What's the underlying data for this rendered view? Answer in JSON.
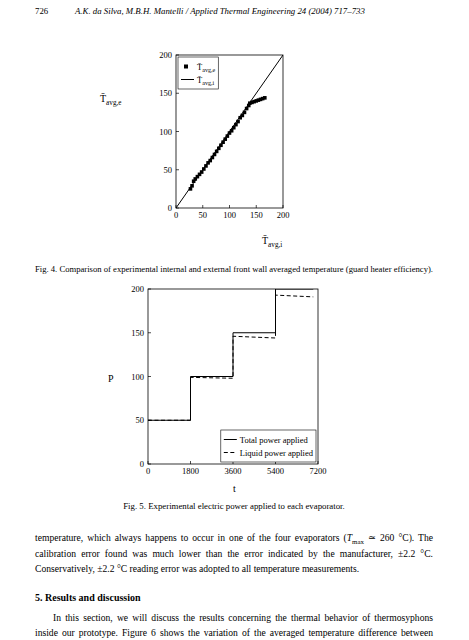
{
  "header": {
    "page_number": "726",
    "running_head": "A.K. da Silva, M.B.H. Mantelli / Applied Thermal Engineering 24 (2004) 717–733"
  },
  "chart_data": [
    {
      "type": "scatter",
      "xlabel": "T̄avg,i",
      "ylabel": "T̄avg,e",
      "xlim": [
        0,
        200
      ],
      "ylim": [
        0,
        200
      ],
      "xticks": [
        0,
        50,
        100,
        150,
        200
      ],
      "yticks": [
        0,
        50,
        100,
        150,
        200
      ],
      "grid": false,
      "legend": "upper left",
      "series": [
        {
          "name": "T̄avg,e",
          "type": "scatter",
          "marker": "square",
          "color": "#000000",
          "x": [
            27,
            30,
            33,
            36,
            40,
            44,
            48,
            52,
            56,
            60,
            64,
            68,
            72,
            76,
            80,
            84,
            88,
            92,
            96,
            100,
            104,
            108,
            112,
            116,
            120,
            124,
            128,
            132,
            136,
            138,
            142,
            146,
            150,
            154,
            158,
            162,
            166
          ],
          "values": [
            25,
            29,
            35,
            38,
            41,
            44,
            47,
            51,
            55,
            59,
            62,
            66,
            70,
            74,
            78,
            82,
            86,
            90,
            94,
            98,
            101,
            105,
            109,
            113,
            118,
            121,
            125,
            130,
            134,
            137,
            138,
            139,
            140,
            141,
            142,
            143,
            144
          ]
        },
        {
          "name": "T̄avg,i",
          "type": "line",
          "line_style": "solid",
          "color": "#000000",
          "x": [
            0,
            200
          ],
          "values": [
            0,
            200
          ]
        }
      ]
    },
    {
      "type": "line",
      "xlabel": "t",
      "ylabel": "P",
      "xlim": [
        0,
        7200
      ],
      "ylim": [
        0,
        200
      ],
      "xticks": [
        0,
        1800,
        3600,
        5400,
        7200
      ],
      "yticks": [
        0,
        50,
        100,
        150,
        200
      ],
      "grid": false,
      "legend": "lower right",
      "series": [
        {
          "name": "Total power applied",
          "line_style": "solid",
          "color": "#000000",
          "x": [
            0,
            1800,
            1800,
            3600,
            3600,
            5400,
            5400,
            7000
          ],
          "values": [
            50,
            50,
            100,
            100,
            150,
            150,
            200,
            200
          ]
        },
        {
          "name": "Liquid power applied",
          "line_style": "dashed",
          "color": "#000000",
          "x": [
            0,
            1800,
            1800,
            3600,
            3600,
            5400,
            5400,
            7000
          ],
          "values": [
            50,
            50,
            99,
            98,
            146,
            144,
            193,
            191
          ]
        }
      ]
    }
  ],
  "captions": [
    "Fig. 4. Comparison of experimental internal and external front wall averaged temperature (guard heater efficiency).",
    "Fig. 5. Experimental electric power applied to each evaporator."
  ],
  "body": [
    {
      "type": "paragraph",
      "lines": [
        [
          "temperature, which always happens to occur in one of the four evaporators (",
          {
            "italic": "T"
          },
          {
            "sub": "max"
          },
          " ≃ 260 °C). The"
        ],
        [
          "calibration error found was much lower than the error indicated by the manufacturer, ±2.2 °C."
        ],
        [
          "Conservatively, ±2.2 °C reading error was adopted to all temperature measurements."
        ]
      ]
    },
    {
      "type": "heading",
      "text": "5. Results and discussion"
    },
    {
      "type": "paragraph",
      "lines": [
        [
          "In this section, we will discuss the results concerning the thermal behavior of thermosyphons"
        ],
        [
          "inside our prototype. Figure 6 shows the variation of the averaged temperature difference between"
        ]
      ]
    }
  ]
}
